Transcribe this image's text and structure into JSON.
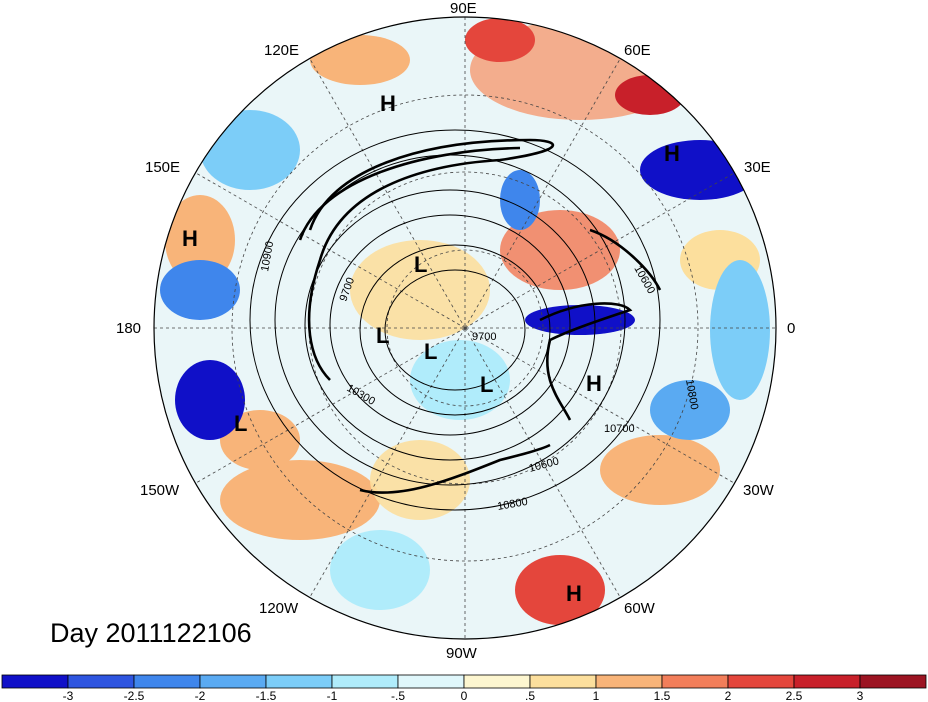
{
  "title": "Day 2011122106",
  "longitude_labels": {
    "e90": "90E",
    "e120": "120E",
    "e60": "60E",
    "e150": "150E",
    "e30": "30E",
    "d180": "180",
    "d0": "0",
    "w150": "150W",
    "w30": "30W",
    "w120": "120W",
    "w60": "60W",
    "w90": "90W"
  },
  "pressure_centers": [
    {
      "type": "H"
    },
    {
      "type": "H"
    },
    {
      "type": "H"
    },
    {
      "type": "H"
    },
    {
      "type": "H"
    },
    {
      "type": "L"
    },
    {
      "type": "L"
    },
    {
      "type": "L"
    },
    {
      "type": "L"
    },
    {
      "type": "L"
    }
  ],
  "contour_labels": [
    "10900",
    "9700",
    "9700",
    "10300",
    "10700",
    "10600",
    "10800",
    "10800",
    "10600"
  ],
  "colorbar": {
    "labels": [
      "-3",
      "-2.5",
      "-2",
      "-1.5",
      "-1",
      "-.5",
      "0",
      ".5",
      "1",
      "1.5",
      "2",
      "2.5",
      "3"
    ],
    "colors": [
      "#1010c8",
      "#2e55e0",
      "#3f86ec",
      "#5aaaf2",
      "#7ccdf8",
      "#b0ecfb",
      "#e0f7fb",
      "#fdf6d0",
      "#fcdf9d",
      "#f8b479",
      "#f27e5a",
      "#e4463c",
      "#c8202a",
      "#9c1422"
    ]
  },
  "colors": {
    "negative_anomaly": "#3a6fe0",
    "positive_anomaly": "#ec6a4c",
    "neutral": "#eaf6f8"
  }
}
